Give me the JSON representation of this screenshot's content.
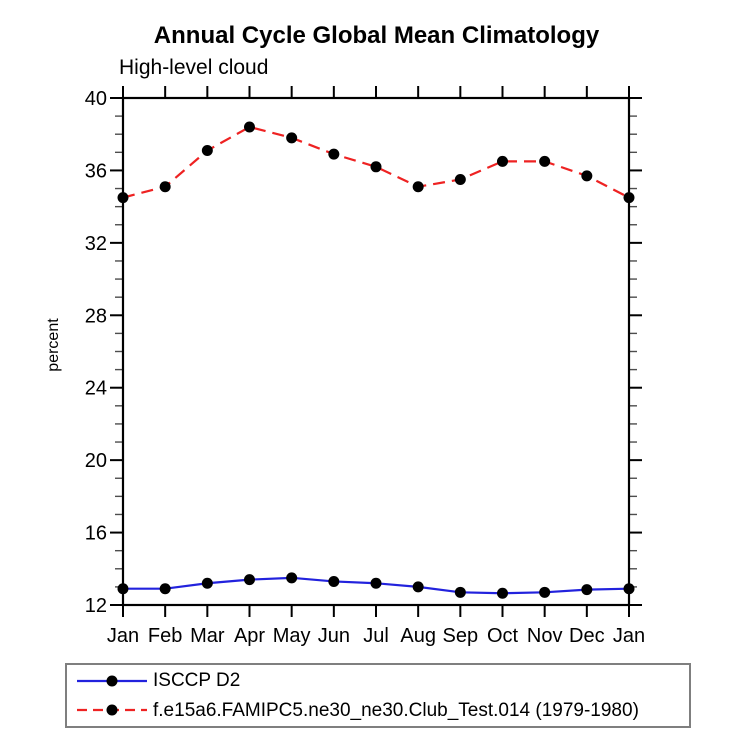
{
  "chart_data": {
    "type": "line",
    "title": "Annual Cycle Global Mean Climatology",
    "subtitle": "High-level cloud",
    "ylabel": "percent",
    "xlabel": "",
    "categories": [
      "Jan",
      "Feb",
      "Mar",
      "Apr",
      "May",
      "Jun",
      "Jul",
      "Aug",
      "Sep",
      "Oct",
      "Nov",
      "Dec",
      "Jan"
    ],
    "ylim": [
      12,
      40
    ],
    "ytick_major": [
      12,
      16,
      20,
      24,
      28,
      32,
      36,
      40
    ],
    "ytick_minor_step": 1,
    "grid": false,
    "legend_position": "bottom-left",
    "frame_color": "#000000",
    "series": [
      {
        "name": "ISCCP D2",
        "color": "#2222dd",
        "line_style": "solid",
        "marker": "filled-circle",
        "marker_color": "#000000",
        "values": [
          12.9,
          12.9,
          13.2,
          13.4,
          13.5,
          13.3,
          13.2,
          13.0,
          12.7,
          12.65,
          12.7,
          12.85,
          12.9
        ]
      },
      {
        "name": "f.e15a6.FAMIPC5.ne30_ne30.Club_Test.014 (1979-1980)",
        "color": "#ee2222",
        "line_style": "dashed",
        "marker": "filled-circle",
        "marker_color": "#000000",
        "values": [
          34.5,
          35.1,
          37.1,
          38.4,
          37.8,
          36.9,
          36.2,
          35.1,
          35.5,
          36.5,
          36.5,
          35.7,
          34.5
        ]
      }
    ]
  }
}
